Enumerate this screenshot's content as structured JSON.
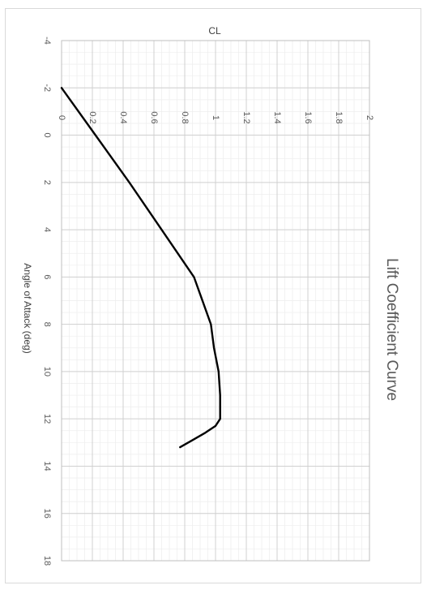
{
  "chart_data": {
    "type": "line",
    "orientation": "rotated 90 degrees clockwise",
    "title": "Lift Coefficient Curve",
    "xlabel": "Angle of Attack (deg)",
    "ylabel": "CL",
    "xlim": [
      -4,
      18
    ],
    "ylim": [
      0,
      2
    ],
    "x_ticks": [
      "-4",
      "-2",
      "0",
      "2",
      "4",
      "6",
      "8",
      "10",
      "12",
      "14",
      "16",
      "18"
    ],
    "y_ticks": [
      "0",
      "0.2",
      "0.4",
      "0.6",
      "0.8",
      "1",
      "1.2",
      "1.4",
      "1.6",
      "1.8",
      "2"
    ],
    "grid": true,
    "minor_grid": true,
    "series": [
      {
        "color": "#000000",
        "x": [
          -2,
          0,
          2,
          4,
          6,
          8,
          9,
          10,
          11,
          11.5,
          12,
          12.3,
          12.6,
          12.9,
          13.2
        ],
        "y": [
          0,
          0.22,
          0.44,
          0.65,
          0.86,
          0.97,
          0.99,
          1.02,
          1.03,
          1.03,
          1.03,
          1.0,
          0.93,
          0.85,
          0.77
        ]
      }
    ]
  }
}
